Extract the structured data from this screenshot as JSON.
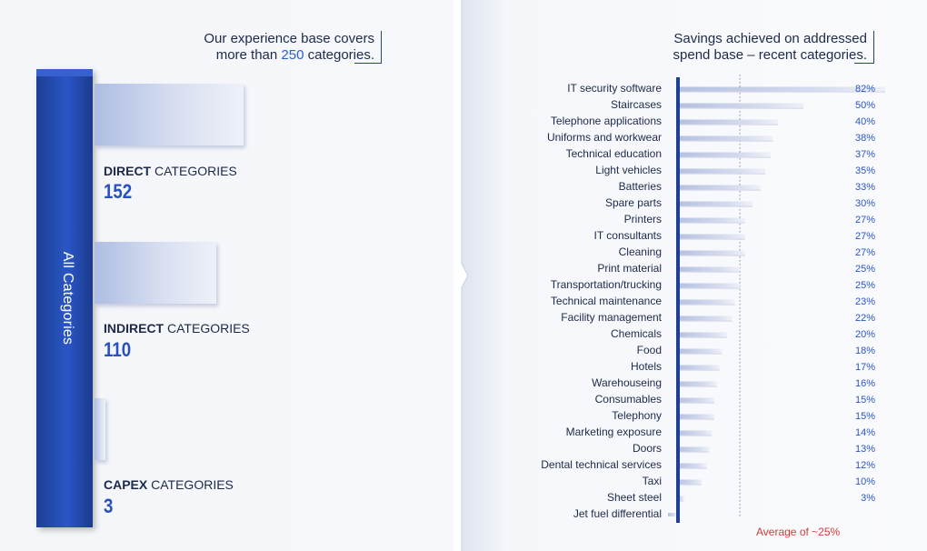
{
  "left": {
    "callout": {
      "line1": "Our experience base covers",
      "line2_pre": "more than ",
      "line2_num": "250",
      "line2_post": " categories."
    },
    "vertical_label": "All Categories",
    "categories": [
      {
        "bold": "DIRECT",
        "rest": " CATEGORIES",
        "count": "152",
        "share": 152
      },
      {
        "bold": "INDIRECT",
        "rest": " CATEGORIES",
        "count": "110",
        "share": 110
      },
      {
        "bold": "CAPEX",
        "rest": " CATEGORIES",
        "count": "3",
        "share": 3
      }
    ]
  },
  "chart_data": {
    "type": "bar",
    "orientation": "horizontal",
    "title": "Savings achieved on addressed spend base – recent categories.",
    "title_line1": "Savings achieved on addressed",
    "title_line2": "spend base – recent categories.",
    "categories": [
      "IT security software",
      "Staircases",
      "Telephone applications",
      "Uniforms and workwear",
      "Technical education",
      "Light vehicles",
      "Batteries",
      "Spare parts",
      "Printers",
      "IT consultants",
      "Cleaning",
      "Print material",
      "Transportation/trucking",
      "Technical maintenance",
      "Facility management",
      "Chemicals",
      "Food",
      "Hotels",
      "Warehouseing",
      "Consumables",
      "Telephony",
      "Marketing exposure",
      "Doors",
      "Dental technical services",
      "Taxi",
      "Sheet steel",
      "Jet fuel differential"
    ],
    "values": [
      82,
      50,
      40,
      38,
      37,
      35,
      33,
      30,
      27,
      27,
      27,
      25,
      25,
      23,
      22,
      20,
      18,
      17,
      16,
      15,
      15,
      14,
      13,
      12,
      10,
      3,
      null
    ],
    "value_labels": [
      "82%",
      "50%",
      "40%",
      "38%",
      "37%",
      "35%",
      "33%",
      "30%",
      "27%",
      "27%",
      "27%",
      "25%",
      "25%",
      "23%",
      "22%",
      "20%",
      "18%",
      "17%",
      "16%",
      "15%",
      "15%",
      "14%",
      "13%",
      "12%",
      "10%",
      "3%",
      ""
    ],
    "xlim": [
      0,
      82
    ],
    "average": 25,
    "average_label": "Average of ~25%",
    "unit": "%"
  }
}
